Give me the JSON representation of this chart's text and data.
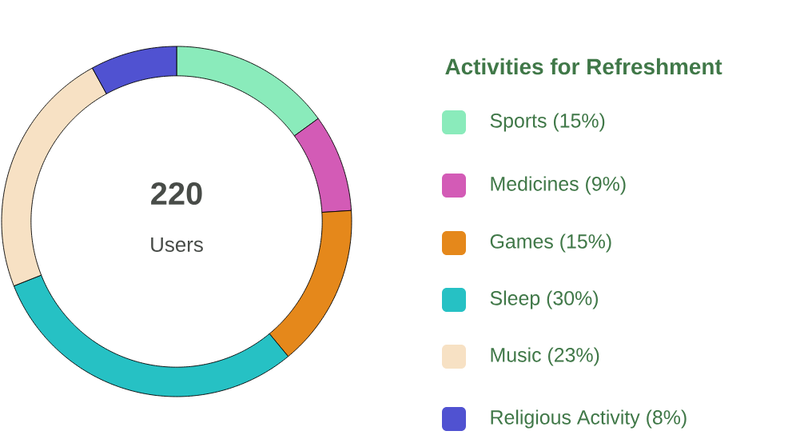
{
  "chart_data": {
    "type": "donut",
    "legend_title": "Activities for Refreshment",
    "categories": [
      "Sports (15%)",
      "Medicines (9%)",
      "Games (15%)",
      "Sleep (30%)",
      "Music (23%)",
      "Religious Activity  (8%)"
    ],
    "values": [
      15,
      9,
      15,
      30,
      23,
      8
    ],
    "colors": [
      "#8aebbb",
      "#d35bb6",
      "#e5881b",
      "#26c1c4",
      "#f7e1c4",
      "#5052d1"
    ],
    "annotations": [
      "220",
      "Users"
    ],
    "legend": "right"
  }
}
